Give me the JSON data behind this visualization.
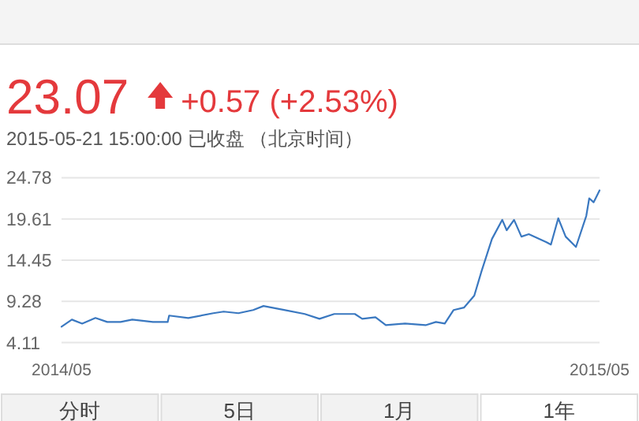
{
  "chart_data": {
    "type": "line",
    "title": "23.07",
    "subtitle": "+0.57 (+2.53%)",
    "annotations": [
      "2015-05-21 15:00:00  已收盘 （北京时间）",
      "分时",
      "5日",
      "1月",
      "1年"
    ],
    "x": [
      "2014-05-21",
      "2014-05-28",
      "2014-06-04",
      "2014-06-13",
      "2014-06-21",
      "2014-06-30",
      "2014-07-08",
      "2014-07-22",
      "2014-08-01",
      "2014-08-02",
      "2014-08-15",
      "2014-09-01",
      "2014-09-08",
      "2014-09-18",
      "2014-09-28",
      "2014-10-05",
      "2014-10-19",
      "2014-11-02",
      "2014-11-12",
      "2014-11-22",
      "2014-12-06",
      "2014-12-11",
      "2014-12-20",
      "2014-12-27",
      "2015-01-09",
      "2015-01-23",
      "2015-01-30",
      "2015-02-05",
      "2015-02-11",
      "2015-02-18",
      "2015-02-25",
      "2015-03-02",
      "2015-03-09",
      "2015-03-16",
      "2015-03-19",
      "2015-03-24",
      "2015-03-29",
      "2015-04-03",
      "2015-04-15",
      "2015-04-18",
      "2015-04-23",
      "2015-04-28",
      "2015-05-05",
      "2015-05-12",
      "2015-05-14",
      "2015-05-17",
      "2015-05-21"
    ],
    "series": [
      {
        "color": "#3a78c0",
        "values": [
          6.1,
          7.0,
          6.5,
          7.2,
          6.7,
          6.7,
          7.0,
          6.7,
          6.7,
          7.5,
          7.2,
          7.8,
          8.0,
          7.8,
          8.2,
          8.7,
          8.2,
          7.7,
          7.1,
          7.7,
          7.7,
          7.1,
          7.3,
          6.3,
          6.5,
          6.3,
          6.7,
          6.5,
          8.2,
          8.5,
          10.0,
          13.1,
          17.1,
          19.5,
          18.2,
          19.5,
          17.4,
          17.7,
          16.7,
          16.4,
          19.7,
          17.4,
          16.1,
          20.0,
          22.2,
          21.7,
          23.2
        ]
      }
    ],
    "xlim": [
      "2014-05-21",
      "2015-05-21"
    ],
    "xticks": [
      {
        "value": "2014-05-21",
        "label": "2014/05"
      },
      {
        "value": "2015-05-21",
        "label": "2015/05"
      }
    ],
    "ylim": [
      4.11,
      24.78
    ],
    "yticks": [
      4.11,
      9.28,
      14.45,
      19.61,
      24.78
    ],
    "grid": "y",
    "line_style": "solid"
  }
}
